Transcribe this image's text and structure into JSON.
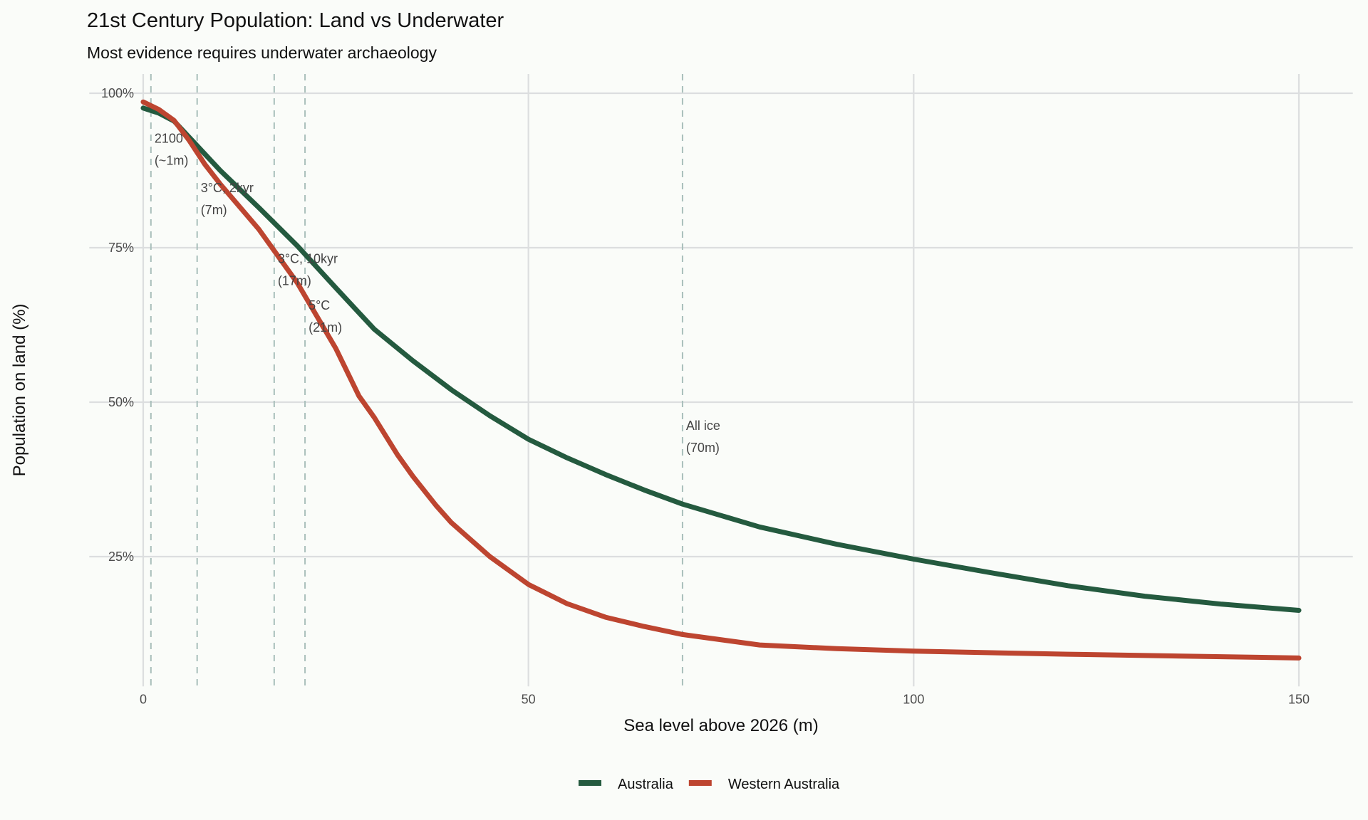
{
  "chart_data": {
    "type": "line",
    "title": "21st Century Population: Land vs Underwater",
    "subtitle": "Most evidence requires underwater archaeology",
    "xlabel": "Sea level above 2026 (m)",
    "ylabel": "Population on land (%)",
    "xlim": [
      -7,
      157
    ],
    "ylim": [
      4,
      100
    ],
    "x_ticks": [
      0,
      50,
      100,
      150
    ],
    "x_tick_labels": [
      "0",
      "50",
      "100",
      "150"
    ],
    "y_ticks": [
      25,
      50,
      75,
      100
    ],
    "y_tick_labels": [
      "25%",
      "50%",
      "75%",
      "100%"
    ],
    "grid": true,
    "legend_position": "bottom",
    "series": [
      {
        "name": "Australia",
        "color": "#245a3f",
        "x": [
          0,
          2,
          4,
          7,
          10,
          15,
          20,
          25,
          30,
          35,
          40,
          45,
          50,
          55,
          60,
          65,
          70,
          80,
          90,
          100,
          110,
          120,
          130,
          140,
          150
        ],
        "y": [
          97.6,
          96.8,
          95.5,
          91.5,
          87.5,
          81.5,
          75.3,
          68.5,
          61.8,
          56.7,
          52,
          47.8,
          44,
          41,
          38.3,
          35.8,
          33.5,
          29.8,
          27,
          24.6,
          22.4,
          20.3,
          18.6,
          17.3,
          16.3
        ]
      },
      {
        "name": "Western Australia",
        "color": "#bd4530",
        "x": [
          0,
          2,
          4,
          6,
          8,
          10,
          15,
          20,
          25,
          28,
          30,
          33,
          35,
          38,
          40,
          45,
          50,
          55,
          60,
          65,
          70,
          80,
          90,
          100,
          120,
          150
        ],
        "y": [
          98.6,
          97.4,
          95.6,
          92.3,
          88.5,
          85.3,
          78,
          69.3,
          58.7,
          51,
          47.5,
          41.5,
          38,
          33.3,
          30.5,
          25,
          20.5,
          17.4,
          15.2,
          13.7,
          12.4,
          10.7,
          10.1,
          9.7,
          9.2,
          8.6
        ]
      }
    ],
    "reference_lines": [
      {
        "x": 1,
        "label_line1": "2100",
        "label_line2": "(~1m)"
      },
      {
        "x": 7,
        "label_line1": "3°C, 2kyr",
        "label_line2": "(7m)"
      },
      {
        "x": 17,
        "label_line1": "3°C, 10kyr",
        "label_line2": "(17m)"
      },
      {
        "x": 21,
        "label_line1": "5°C",
        "label_line2": "(21m)"
      },
      {
        "x": 70,
        "label_line1": "All ice",
        "label_line2": "(70m)"
      }
    ],
    "reference_label_y": [
      92,
      84,
      72.5,
      65,
      45.5
    ]
  }
}
